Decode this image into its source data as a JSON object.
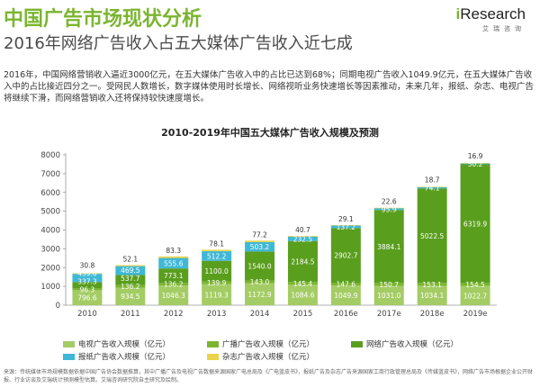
{
  "header": {
    "title": "中国广告市场现状分析",
    "subtitle": "2016年网络广告收入占五大媒体广告收入近七成",
    "logo_text": "Research",
    "logo_letter": "i",
    "logo_sub": "艾瑞咨询"
  },
  "paragraph": "2016年，中国网络营销收入逼近3000亿元，在五大媒体广告收入中的占比已达到68%；同期电视广告收入1049.9亿元，在五大媒体广告收入中的占比接近四分之一。受网民人数增长，数字媒体使用时长增长、网络视听业务快速增长等因素推动，未来几年，报纸、杂志、电视广告将继续下滑，而网络营销收入还将保持较快速度增长。",
  "source": "来源：传统媒体市场规模数据依据中国广告协会数据推算，其中广播广告及电视广告数据来源国家广电总局及《广电蓝皮书》，报纸广告及杂志广告来源国家工商行政管理总局及《传媒蓝皮书》，网络广告市场根据企业公开财报、行业访谈及艾瑞统计预测模型估算。艾瑞咨询研究院自主研究及绘制。",
  "colors": {
    "tv": "#a4cc64",
    "radio": "#7bb530",
    "internet": "#5a9e1e",
    "newspaper": "#3fb8d6",
    "magazine": "#ead34a"
  },
  "chart_data": {
    "type": "bar",
    "stacked": true,
    "title": "2010-2019年中国五大媒体广告收入规模及预测",
    "categories": [
      "2010",
      "2011",
      "2012",
      "2013",
      "2014",
      "2015",
      "2016e",
      "2017e",
      "2018e",
      "2019e"
    ],
    "ylim": [
      0,
      8000
    ],
    "yticks": [
      0,
      1000,
      2000,
      3000,
      4000,
      5000,
      6000,
      7000,
      8000
    ],
    "grid": false,
    "legend_position": "bottom",
    "series": [
      {
        "name": "电视广告收入规模（亿元）",
        "key": "tv",
        "values": [
          796.6,
          934.5,
          1046.3,
          1119.3,
          1172.9,
          1084.6,
          1049.9,
          1031.0,
          1034.1,
          1022.7
        ]
      },
      {
        "name": "广播广告收入规模（亿元）",
        "key": "radio",
        "values": [
          96.3,
          136.2,
          136.2,
          139.9,
          143.0,
          145.4,
          147.6,
          150.7,
          153.1,
          154.5
        ]
      },
      {
        "name": "网络广告收入规模（亿元）",
        "key": "internet",
        "values": [
          337.3,
          537.7,
          773.1,
          1100.0,
          1540.0,
          2184.5,
          2902.7,
          3884.1,
          5022.5,
          6319.9
        ]
      },
      {
        "name": "报纸广告收入规模（亿元）",
        "key": "newspaper",
        "values": [
          439.0,
          469.5,
          555.6,
          512.2,
          503.2,
          232.5,
          137.2,
          95.9,
          74.1,
          50.2
        ]
      },
      {
        "name": "杂志广告收入规模（亿元）",
        "key": "magazine",
        "values": [
          30.8,
          52.1,
          83.3,
          78.1,
          77.2,
          40.7,
          29.1,
          22.6,
          18.7,
          16.9
        ]
      }
    ]
  }
}
